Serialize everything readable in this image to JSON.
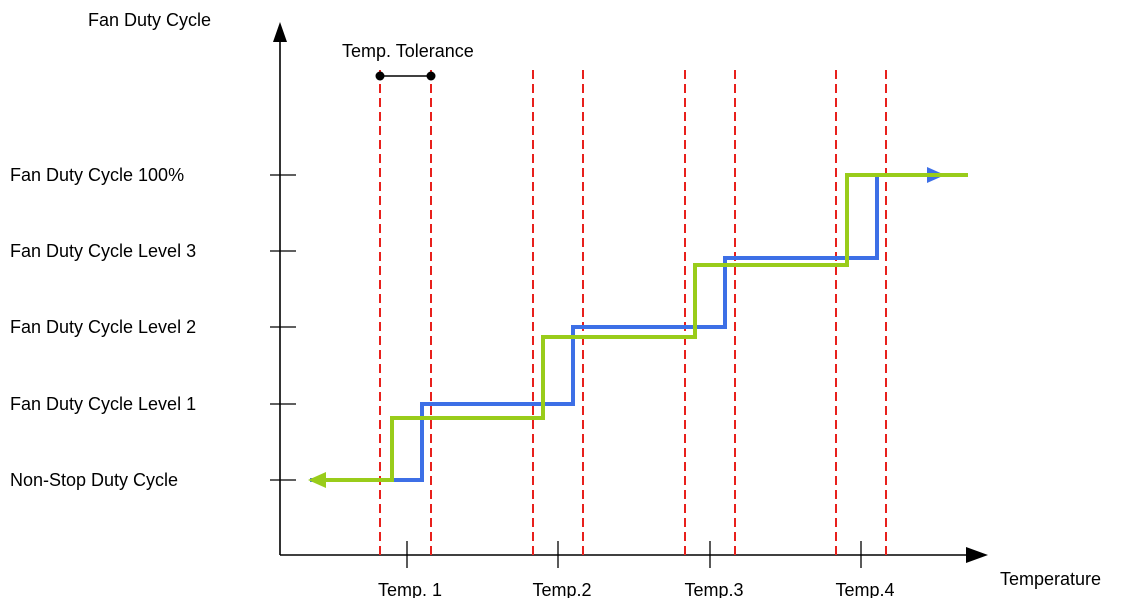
{
  "diagram": {
    "y_axis_label": "Fan Duty Cycle",
    "x_axis_label": "Temperature",
    "tolerance_label": "Temp. Tolerance",
    "y_levels": [
      "Fan Duty Cycle 100%",
      "Fan Duty Cycle Level 3",
      "Fan Duty Cycle Level 2",
      "Fan Duty Cycle Level 1",
      "Non-Stop Duty Cycle"
    ],
    "x_ticks": [
      "Temp. 1",
      "Temp.2",
      "Temp.3",
      "Temp.4"
    ],
    "colors": {
      "rising_curve": "#3d6fe6",
      "falling_curve": "#99cc1a",
      "tolerance_lines": "#e8201c",
      "axes": "#000000"
    }
  }
}
